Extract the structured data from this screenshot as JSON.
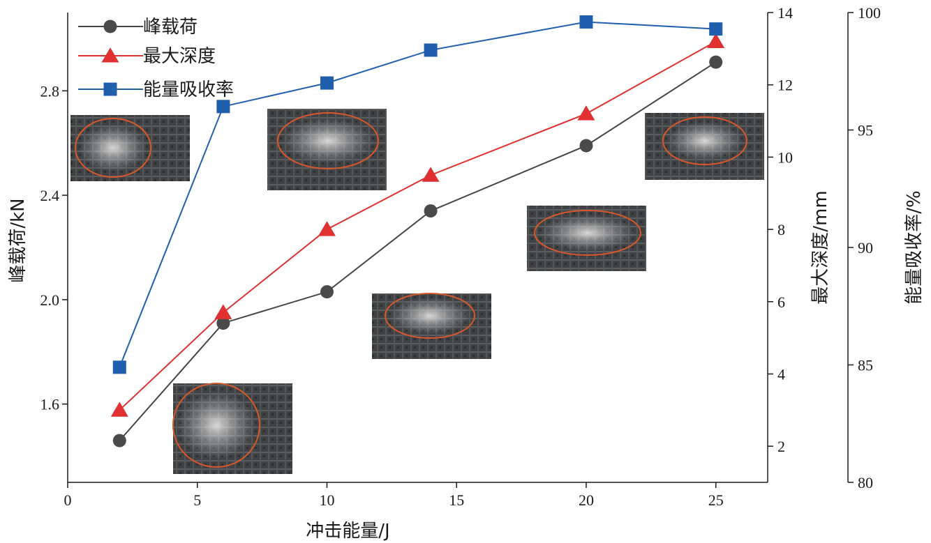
{
  "chart_data": {
    "type": "line",
    "x": [
      2,
      6,
      10,
      14,
      20,
      25
    ],
    "xlabel": "冲击能量/J",
    "xlim": [
      0,
      27
    ],
    "xticks": [
      0,
      5,
      10,
      15,
      20,
      25
    ],
    "axes": {
      "y_left": {
        "label": "峰载荷/kN",
        "range": [
          1.3,
          3.1
        ],
        "ticks": [
          1.6,
          2.0,
          2.4,
          2.8
        ],
        "tick_labels": [
          "1.6",
          "2.0",
          "2.4",
          "2.8"
        ]
      },
      "y_mid": {
        "label": "最大深度/mm",
        "range": [
          1,
          14
        ],
        "ticks": [
          2,
          4,
          6,
          8,
          10,
          12,
          14
        ]
      },
      "y_right": {
        "label": "能量吸收率/%",
        "range": [
          80,
          100
        ],
        "ticks": [
          80,
          85,
          90,
          95,
          100
        ]
      }
    },
    "series": [
      {
        "name": "峰载荷",
        "axis": "y_left",
        "marker": "circle",
        "color": "#444444",
        "marker_color": "#4a4a4a",
        "values": [
          1.46,
          1.91,
          2.03,
          2.34,
          2.59,
          2.91
        ]
      },
      {
        "name": "最大深度",
        "axis": "y_mid",
        "marker": "triangle",
        "color": "#e03030",
        "marker_color": "#e03030",
        "values": [
          3.0,
          5.7,
          8.0,
          9.5,
          11.2,
          13.2
        ]
      },
      {
        "name": "能量吸收率",
        "axis": "y_right",
        "marker": "square",
        "color": "#1f5fae",
        "marker_color": "#1f5fae",
        "values": [
          84.9,
          96.0,
          97.0,
          98.4,
          99.6,
          99.3
        ]
      }
    ],
    "legend_position": "top-left",
    "grid": false,
    "insets": [
      {
        "x": 2
      },
      {
        "x": 6
      },
      {
        "x": 10
      },
      {
        "x": 14
      },
      {
        "x": 20
      },
      {
        "x": 25
      }
    ]
  }
}
